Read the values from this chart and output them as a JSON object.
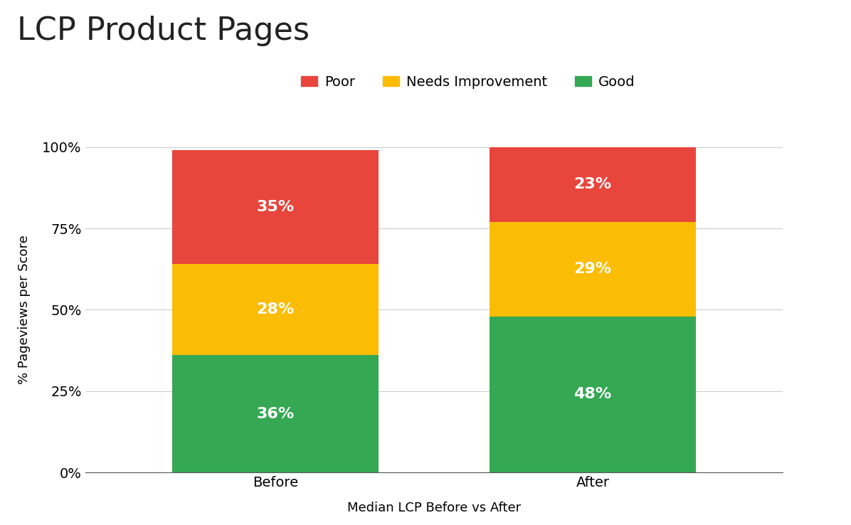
{
  "title": "LCP Product Pages",
  "xlabel": "Median LCP Before vs After",
  "ylabel": "% Pageviews per Score",
  "categories": [
    "Before",
    "After"
  ],
  "good": [
    36,
    48
  ],
  "needs": [
    28,
    29
  ],
  "poor": [
    35,
    23
  ],
  "color_good": "#34a853",
  "color_needs": "#fbbc04",
  "color_poor": "#e8453c",
  "label_good": "Good",
  "label_needs": "Needs Improvement",
  "label_poor": "Poor",
  "yticks": [
    0,
    25,
    50,
    75,
    100
  ],
  "ytick_labels": [
    "0%",
    "25%",
    "50%",
    "75%",
    "100%"
  ],
  "bar_width": 0.65,
  "title_fontsize": 32,
  "label_fontsize": 13,
  "tick_fontsize": 14,
  "legend_fontsize": 14,
  "annotation_fontsize": 16,
  "background_color": "#ffffff"
}
